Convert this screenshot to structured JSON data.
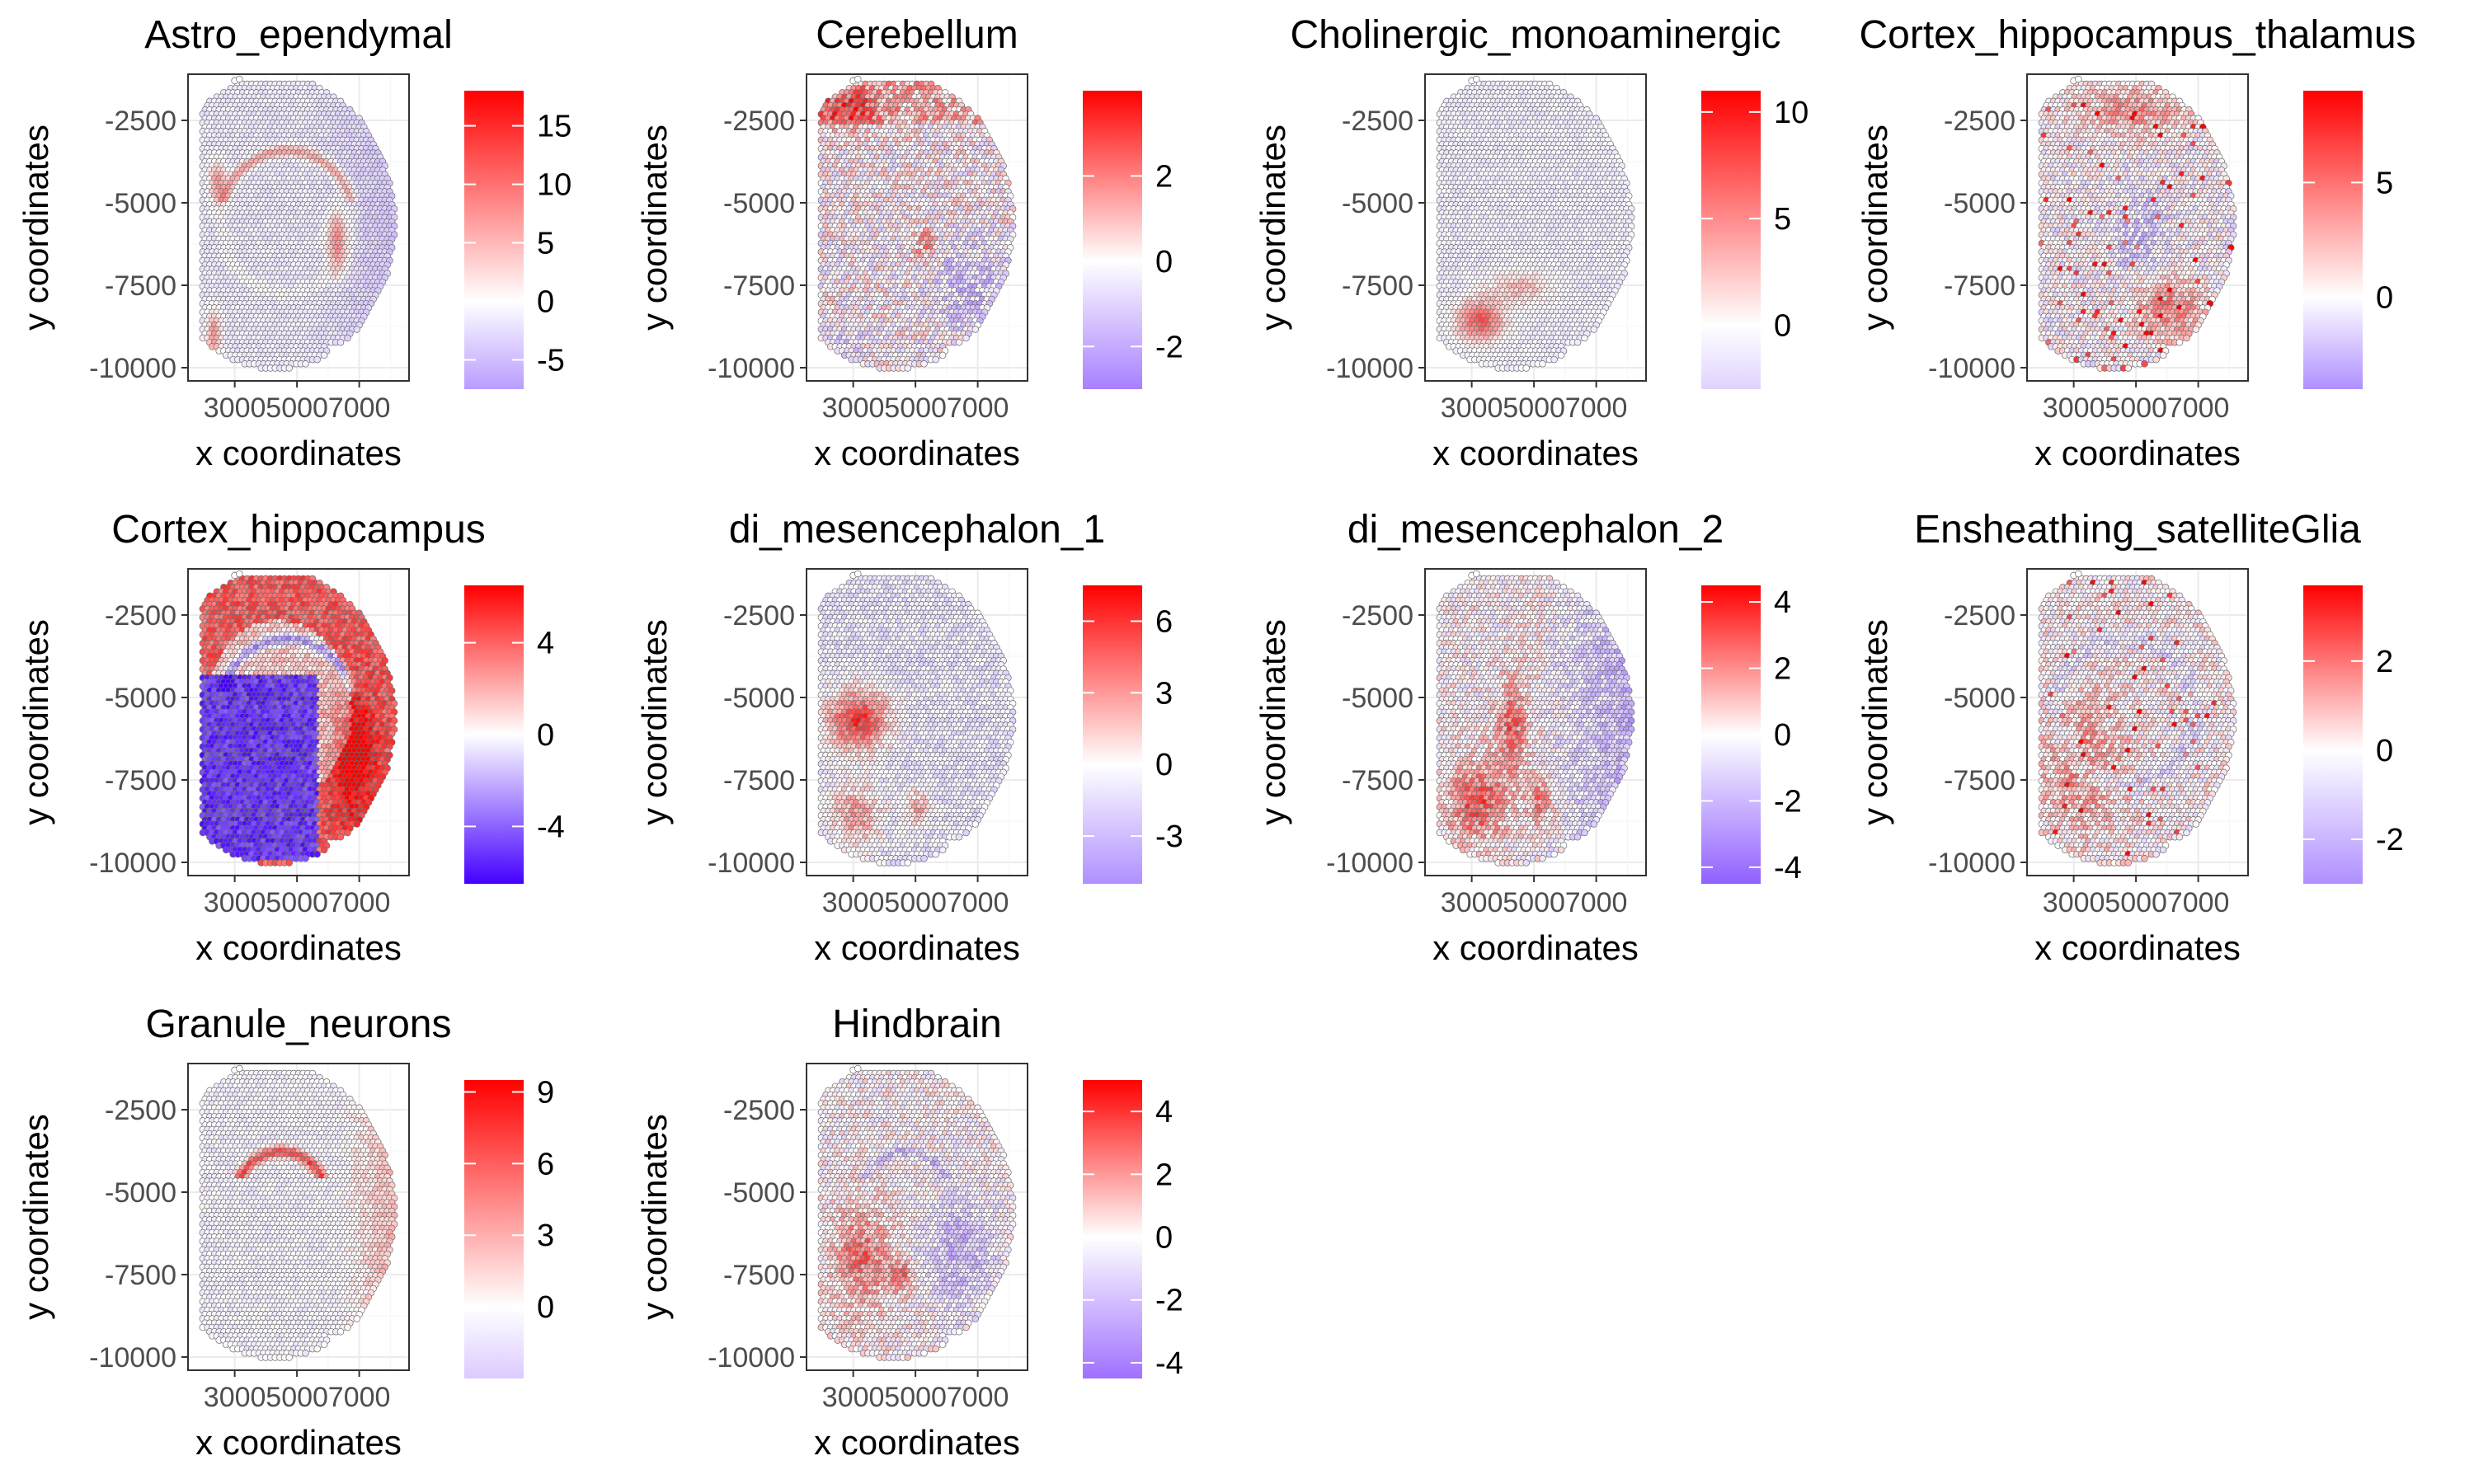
{
  "figure": {
    "axis_labels": {
      "x": "x coordinates",
      "y": "y coordinates"
    }
  },
  "chart_data": [
    {
      "type": "heatmap",
      "title": "Astro_ependymal",
      "xlabel": "x coordinates",
      "ylabel": "y coordinates",
      "x_ticks": [
        3000,
        5000,
        7000
      ],
      "x_tick_labels": [
        "3000",
        "5000",
        "7000"
      ],
      "y_ticks": [
        -2500,
        -5000,
        -7500,
        -10000
      ],
      "y_tick_labels": [
        "-2500",
        "-5000",
        "-7500",
        "-10000"
      ],
      "xlim": [
        1500,
        8600
      ],
      "ylim": [
        -10400,
        -1100
      ],
      "legend": {
        "min": -7.5,
        "max": 18,
        "ticks": [
          -5,
          0,
          5,
          10,
          15
        ],
        "tick_labels": [
          "-5",
          "0",
          "5",
          "10",
          "15"
        ],
        "low_color": "#b99cff",
        "high_color": "#ff0000"
      },
      "pattern": "astro",
      "seed": 11
    },
    {
      "type": "heatmap",
      "title": "Cerebellum",
      "xlabel": "x coordinates",
      "ylabel": "y coordinates",
      "x_ticks": [
        3000,
        5000,
        7000
      ],
      "x_tick_labels": [
        "3000",
        "5000",
        "7000"
      ],
      "y_ticks": [
        -2500,
        -5000,
        -7500,
        -10000
      ],
      "y_tick_labels": [
        "-2500",
        "-5000",
        "-7500",
        "-10000"
      ],
      "xlim": [
        1500,
        8600
      ],
      "ylim": [
        -10400,
        -1100
      ],
      "legend": {
        "min": -3,
        "max": 4,
        "ticks": [
          -2,
          0,
          2
        ],
        "tick_labels": [
          "-2",
          "0",
          "2"
        ],
        "low_color": "#a880ff",
        "high_color": "#ff0000"
      },
      "pattern": "cerebellum",
      "seed": 23
    },
    {
      "type": "heatmap",
      "title": "Cholinergic_monoaminergic",
      "xlabel": "x coordinates",
      "ylabel": "y coordinates",
      "x_ticks": [
        3000,
        5000,
        7000
      ],
      "x_tick_labels": [
        "3000",
        "5000",
        "7000"
      ],
      "y_ticks": [
        -2500,
        -5000,
        -7500,
        -10000
      ],
      "y_tick_labels": [
        "-2500",
        "-5000",
        "-7500",
        "-10000"
      ],
      "xlim": [
        1500,
        8600
      ],
      "ylim": [
        -10400,
        -1100
      ],
      "legend": {
        "min": -3,
        "max": 11,
        "ticks": [
          0,
          5,
          10
        ],
        "tick_labels": [
          "0",
          "5",
          "10"
        ],
        "low_color": "#e0d2ff",
        "high_color": "#ff0000"
      },
      "pattern": "cholinergic",
      "seed": 37
    },
    {
      "type": "heatmap",
      "title": "Cortex_hippocampus_thalamus",
      "xlabel": "x coordinates",
      "ylabel": "y coordinates",
      "x_ticks": [
        3000,
        5000,
        7000
      ],
      "x_tick_labels": [
        "3000",
        "5000",
        "7000"
      ],
      "y_ticks": [
        -2500,
        -5000,
        -7500,
        -10000
      ],
      "y_tick_labels": [
        "-2500",
        "-5000",
        "-7500",
        "-10000"
      ],
      "xlim": [
        1500,
        8600
      ],
      "ylim": [
        -10400,
        -1100
      ],
      "legend": {
        "min": -4,
        "max": 9,
        "ticks": [
          0,
          5
        ],
        "tick_labels": [
          "0",
          "5"
        ],
        "low_color": "#b090ff",
        "high_color": "#ff0000"
      },
      "pattern": "cht",
      "seed": 41
    },
    {
      "type": "heatmap",
      "title": "Cortex_hippocampus",
      "xlabel": "x coordinates",
      "ylabel": "y coordinates",
      "x_ticks": [
        3000,
        5000,
        7000
      ],
      "x_tick_labels": [
        "3000",
        "5000",
        "7000"
      ],
      "y_ticks": [
        -2500,
        -5000,
        -7500,
        -10000
      ],
      "y_tick_labels": [
        "-2500",
        "-5000",
        "-7500",
        "-10000"
      ],
      "xlim": [
        1500,
        8600
      ],
      "ylim": [
        -10400,
        -1100
      ],
      "legend": {
        "min": -6.5,
        "max": 6.5,
        "ticks": [
          -4,
          0,
          4
        ],
        "tick_labels": [
          "-4",
          "0",
          "4"
        ],
        "low_color": "#4400ff",
        "high_color": "#ff0000"
      },
      "pattern": "cortex_hip",
      "seed": 53
    },
    {
      "type": "heatmap",
      "title": "di_mesencephalon_1",
      "xlabel": "x coordinates",
      "ylabel": "y coordinates",
      "x_ticks": [
        3000,
        5000,
        7000
      ],
      "x_tick_labels": [
        "3000",
        "5000",
        "7000"
      ],
      "y_ticks": [
        -2500,
        -5000,
        -7500,
        -10000
      ],
      "y_tick_labels": [
        "-2500",
        "-5000",
        "-7500",
        "-10000"
      ],
      "xlim": [
        1500,
        8600
      ],
      "ylim": [
        -10400,
        -1100
      ],
      "legend": {
        "min": -5,
        "max": 7.5,
        "ticks": [
          -3,
          0,
          3,
          6
        ],
        "tick_labels": [
          "-3",
          "0",
          "3",
          "6"
        ],
        "low_color": "#b090ff",
        "high_color": "#ff0000"
      },
      "pattern": "dimes1",
      "seed": 67
    },
    {
      "type": "heatmap",
      "title": "di_mesencephalon_2",
      "xlabel": "x coordinates",
      "ylabel": "y coordinates",
      "x_ticks": [
        3000,
        5000,
        7000
      ],
      "x_tick_labels": [
        "3000",
        "5000",
        "7000"
      ],
      "y_ticks": [
        -2500,
        -5000,
        -7500,
        -10000
      ],
      "y_tick_labels": [
        "-2500",
        "-5000",
        "-7500",
        "-10000"
      ],
      "xlim": [
        1500,
        8600
      ],
      "ylim": [
        -10400,
        -1100
      ],
      "legend": {
        "min": -4.5,
        "max": 4.5,
        "ticks": [
          -4,
          -2,
          0,
          2,
          4
        ],
        "tick_labels": [
          "-4",
          "-2",
          "0",
          "2",
          "4"
        ],
        "low_color": "#9060ff",
        "high_color": "#ff0000"
      },
      "pattern": "dimes2",
      "seed": 71
    },
    {
      "type": "heatmap",
      "title": "Ensheathing_satelliteGlia",
      "xlabel": "x coordinates",
      "ylabel": "y coordinates",
      "x_ticks": [
        3000,
        5000,
        7000
      ],
      "x_tick_labels": [
        "3000",
        "5000",
        "7000"
      ],
      "y_ticks": [
        -2500,
        -5000,
        -7500,
        -10000
      ],
      "y_tick_labels": [
        "-2500",
        "-5000",
        "-7500",
        "-10000"
      ],
      "xlim": [
        1500,
        8600
      ],
      "ylim": [
        -10400,
        -1100
      ],
      "legend": {
        "min": -3,
        "max": 3.7,
        "ticks": [
          -2,
          0,
          2
        ],
        "tick_labels": [
          "-2",
          "0",
          "2"
        ],
        "low_color": "#b090ff",
        "high_color": "#ff0000"
      },
      "pattern": "glia",
      "seed": 83
    },
    {
      "type": "heatmap",
      "title": "Granule_neurons",
      "xlabel": "x coordinates",
      "ylabel": "y coordinates",
      "x_ticks": [
        3000,
        5000,
        7000
      ],
      "x_tick_labels": [
        "3000",
        "5000",
        "7000"
      ],
      "y_ticks": [
        -2500,
        -5000,
        -7500,
        -10000
      ],
      "y_tick_labels": [
        "-2500",
        "-5000",
        "-7500",
        "-10000"
      ],
      "xlim": [
        1500,
        8600
      ],
      "ylim": [
        -10400,
        -1100
      ],
      "legend": {
        "min": -3,
        "max": 9.5,
        "ticks": [
          0,
          3,
          6,
          9
        ],
        "tick_labels": [
          "0",
          "3",
          "6",
          "9"
        ],
        "low_color": "#dccaff",
        "high_color": "#ff0000"
      },
      "pattern": "granule",
      "seed": 97
    },
    {
      "type": "heatmap",
      "title": "Hindbrain",
      "xlabel": "x coordinates",
      "ylabel": "y coordinates",
      "x_ticks": [
        3000,
        5000,
        7000
      ],
      "x_tick_labels": [
        "3000",
        "5000",
        "7000"
      ],
      "y_ticks": [
        -2500,
        -5000,
        -7500,
        -10000
      ],
      "y_tick_labels": [
        "-2500",
        "-5000",
        "-7500",
        "-10000"
      ],
      "xlim": [
        1500,
        8600
      ],
      "ylim": [
        -10400,
        -1100
      ],
      "legend": {
        "min": -4.5,
        "max": 5,
        "ticks": [
          -4,
          -2,
          0,
          2,
          4
        ],
        "tick_labels": [
          "-4",
          "-2",
          "0",
          "2",
          "4"
        ],
        "low_color": "#a070ff",
        "high_color": "#ff0000"
      },
      "pattern": "hindbrain",
      "seed": 101
    }
  ]
}
